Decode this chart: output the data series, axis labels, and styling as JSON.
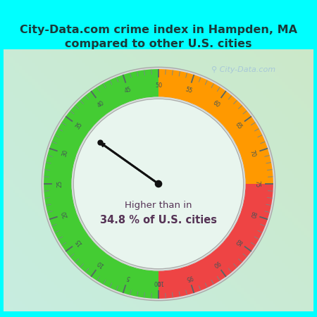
{
  "title_line1": "City-Data.com crime index in Hampden, MA",
  "title_line2": "compared to other U.S. cities",
  "title_bg_color": "#00FFFF",
  "title_text_color": "#1a3a3a",
  "bg_color_top": "#c8f0e8",
  "bg_color_bottom": "#d8f5e0",
  "inner_bg_color": "#e8f5ee",
  "value": 34.8,
  "label_line1": "Higher than in",
  "label_line2": "34.8 % of U.S. cities",
  "green_color": "#44cc33",
  "orange_color": "#ff9900",
  "red_color": "#ee4444",
  "needle_color": "#111111",
  "watermark_text": "City-Data.com",
  "watermark_color": "#a8c8d8",
  "label_color": "#553355",
  "tick_color_major": "#556666",
  "tick_color_minor": "#778888",
  "outer_ring_color": "#cccccc",
  "border_color": "#bbbbbb"
}
